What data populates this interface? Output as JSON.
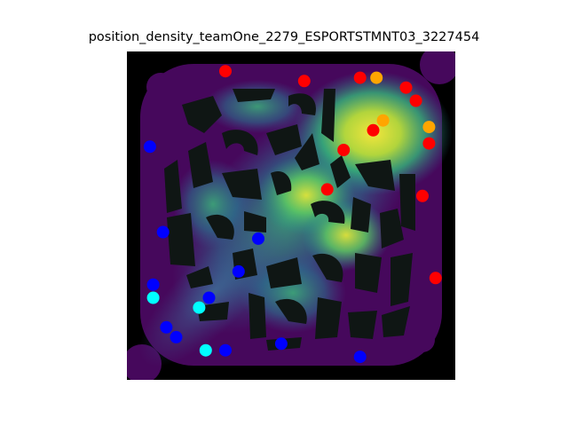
{
  "title": "position_density_teamOne_2279_ESPORTSTMNT03_3227454",
  "colors": {
    "background": "#000000",
    "walls": "#0f1614",
    "red_team": "#ff0000",
    "orange_team": "#ffa500",
    "blue_team": "#0000ff",
    "cyan_team": "#00ffff"
  },
  "markers": {
    "red": [
      [
        0.3,
        0.06
      ],
      [
        0.54,
        0.09
      ],
      [
        0.71,
        0.08
      ],
      [
        0.85,
        0.11
      ],
      [
        0.88,
        0.15
      ],
      [
        0.75,
        0.24
      ],
      [
        0.66,
        0.3
      ],
      [
        0.92,
        0.28
      ],
      [
        0.61,
        0.42
      ],
      [
        0.9,
        0.44
      ],
      [
        0.94,
        0.69
      ]
    ],
    "orange": [
      [
        0.76,
        0.08
      ],
      [
        0.78,
        0.21
      ],
      [
        0.92,
        0.23
      ]
    ],
    "blue": [
      [
        0.07,
        0.29
      ],
      [
        0.11,
        0.55
      ],
      [
        0.4,
        0.57
      ],
      [
        0.34,
        0.67
      ],
      [
        0.08,
        0.71
      ],
      [
        0.25,
        0.75
      ],
      [
        0.12,
        0.84
      ],
      [
        0.15,
        0.87
      ],
      [
        0.3,
        0.91
      ],
      [
        0.47,
        0.89
      ],
      [
        0.71,
        0.93
      ]
    ],
    "cyan": [
      [
        0.08,
        0.75
      ],
      [
        0.22,
        0.78
      ],
      [
        0.24,
        0.91
      ]
    ]
  }
}
